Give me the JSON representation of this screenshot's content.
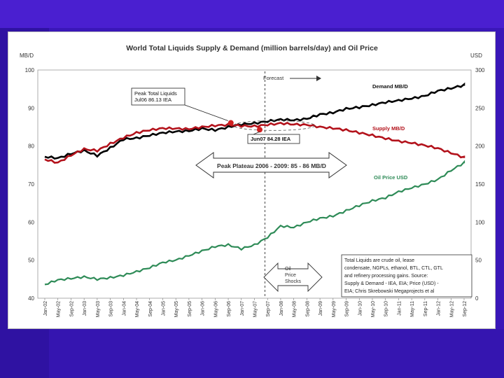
{
  "chart_data": {
    "type": "line",
    "title": "World Total Liquids Supply & Demand (million barrels/day) and Oil Price",
    "ylabel_left": "MB/D",
    "ylabel_right": "USD",
    "ylim_left": [
      40,
      100
    ],
    "ylim_right": [
      0,
      300
    ],
    "yticks_left": [
      "40",
      "50",
      "60",
      "70",
      "80",
      "90",
      "100"
    ],
    "yticks_right": [
      "0",
      "50",
      "100",
      "150",
      "200",
      "250",
      "300"
    ],
    "x_ticks": [
      "Jan-02",
      "May-02",
      "Sep-02",
      "Jan-03",
      "May-03",
      "Sep-03",
      "Jan-04",
      "May-04",
      "Sep-04",
      "Jan-05",
      "May-05",
      "Sep-05",
      "Jan-06",
      "May-06",
      "Sep-06",
      "Jan-07",
      "May-07",
      "Sep-07",
      "Jan-08",
      "May-08",
      "Sep-08",
      "Jan-09",
      "May-09",
      "Sep-09",
      "Jan-10",
      "May-10",
      "Sep-10",
      "Jan-11",
      "May-11",
      "Sep-11",
      "Jan-12",
      "May-12",
      "Sep-12"
    ],
    "grid": true,
    "series": [
      {
        "name": "Demand MB/D",
        "axis": "left",
        "color": "#000000",
        "values": [
          77.2,
          76.8,
          78.0,
          78.8,
          77.5,
          79.5,
          81.8,
          82.1,
          82.8,
          83.5,
          83.8,
          84.0,
          84.6,
          84.2,
          85.0,
          85.7,
          86.0,
          86.5,
          87.0,
          86.8,
          87.2,
          88.3,
          88.8,
          89.8,
          90.2,
          90.8,
          91.5,
          92.0,
          92.5,
          93.2,
          94.5,
          95.2,
          96.0
        ]
      },
      {
        "name": "Supply MB/D",
        "axis": "left",
        "color": "#b3121b",
        "values": [
          76.5,
          75.6,
          77.6,
          79.2,
          78.8,
          80.6,
          82.2,
          83.5,
          84.2,
          84.7,
          84.6,
          84.5,
          85.0,
          85.4,
          85.6,
          85.3,
          85.2,
          85.6,
          86.0,
          85.7,
          85.6,
          85.0,
          84.7,
          84.2,
          83.5,
          82.8,
          82.0,
          81.3,
          80.8,
          80.2,
          79.4,
          78.2,
          77.0
        ]
      },
      {
        "name": "Oil Price USD",
        "axis": "right",
        "color": "#2e8b57",
        "values": [
          18,
          24,
          26,
          28,
          25,
          27,
          30,
          35,
          40,
          47,
          50,
          56,
          62,
          68,
          70,
          65,
          70,
          80,
          95,
          93,
          100,
          105,
          108,
          115,
          122,
          128,
          132,
          140,
          145,
          150,
          156,
          168,
          178
        ]
      }
    ],
    "annotations": {
      "forecast": "Forecast",
      "peak_total": "Peak Total Liquids\nJul06 86.13 IEA",
      "jun07": "Jun07 84.28 IEA",
      "plateau": "Peak Plateau 2006 - 2009: 85 - 86 MB/D",
      "shocks": "Oil\nPrice\nShocks",
      "note": "Total Liquids are crude oil, lease\ncondensate, NGPLs, ethanol, BTL, CTL, GTL\nand refinery processing gains. Source:\nSupply & Demand - IEA, EIA; Price (USD) -\nEIA; Chris Skrebowski Megaprojects et al"
    }
  }
}
